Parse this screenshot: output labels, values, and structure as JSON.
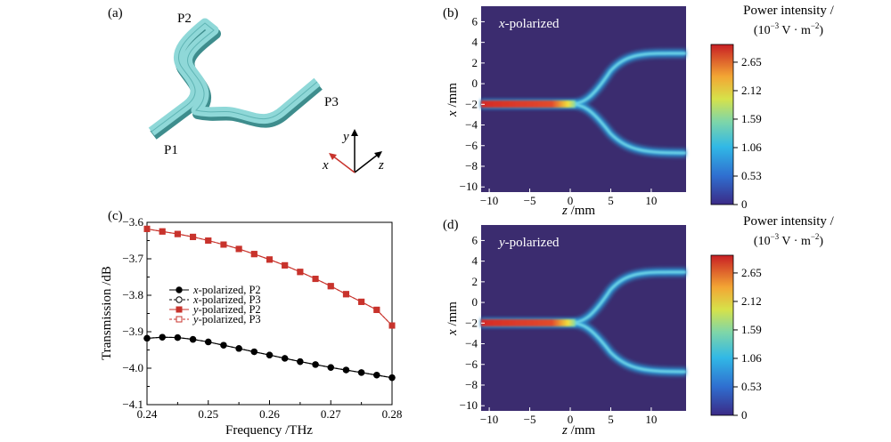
{
  "panels": {
    "a": {
      "tag": "(a)",
      "ports": [
        "P1",
        "P2",
        "P3"
      ],
      "axes": {
        "y": "y",
        "x": "x",
        "z": "z"
      }
    },
    "b": {
      "tag": "(b)",
      "inset": "-polarized",
      "inset_var": "x",
      "xlabel": " /mm",
      "xlabel_var": "z",
      "ylabel": " /mm",
      "ylabel_var": "x",
      "colorbar": {
        "title1": "Power intensity /",
        "title2": "(10",
        "title2_exp": "−3",
        "title2_rest": " V · m",
        "title2_exp2": "−2",
        "title2_end": ")",
        "ticks": [
          "2.65",
          "2.12",
          "1.59",
          "1.06",
          "0.53",
          "0"
        ]
      }
    },
    "d": {
      "tag": "(d)",
      "inset": "-polarized",
      "inset_var": "y",
      "xlabel": " /mm",
      "xlabel_var": "z",
      "ylabel": " /mm",
      "ylabel_var": "x",
      "colorbar": {
        "title1": "Power intensity /",
        "title2": "(10",
        "title2_exp": "−3",
        "title2_rest": " V · m",
        "title2_exp2": "−2",
        "title2_end": ")",
        "ticks": [
          "2.65",
          "2.12",
          "1.59",
          "1.06",
          "0.53",
          "0"
        ]
      }
    },
    "c": {
      "tag": "(c)"
    }
  },
  "field_maps": {
    "x_ticks": [
      "−10",
      "−5",
      "0",
      "5",
      "10"
    ],
    "y_ticks": [
      "6",
      "4",
      "2",
      "0",
      "−2",
      "−4",
      "−6",
      "−8",
      "−10"
    ]
  },
  "chart_data": {
    "type": "line",
    "xlabel": "Frequency /THz",
    "ylabel": "Transmission /dB",
    "xlim": [
      0.24,
      0.28
    ],
    "ylim": [
      -4.1,
      -3.6
    ],
    "x_ticks": [
      "0.24",
      "0.25",
      "0.26",
      "0.27",
      "0.28"
    ],
    "y_ticks": [
      "−3.6",
      "−3.7",
      "−3.8",
      "−3.9",
      "−4.0",
      "−4.1"
    ],
    "x": [
      0.24,
      0.2425,
      0.245,
      0.2475,
      0.25,
      0.2525,
      0.255,
      0.2575,
      0.26,
      0.2625,
      0.265,
      0.2675,
      0.27,
      0.2725,
      0.275,
      0.2775,
      0.28
    ],
    "series": [
      {
        "name": "-polarized, P2",
        "var": "x",
        "color": "#000000",
        "marker": "filled-circle",
        "values": [
          -3.918,
          -3.915,
          -3.916,
          -3.921,
          -3.928,
          -3.937,
          -3.946,
          -3.955,
          -3.964,
          -3.973,
          -3.982,
          -3.99,
          -3.998,
          -4.005,
          -4.012,
          -4.019,
          -4.026
        ]
      },
      {
        "name": "-polarized, P3",
        "var": "x",
        "color": "#000000",
        "marker": "open-circle",
        "values": [
          -3.918,
          -3.915,
          -3.916,
          -3.921,
          -3.928,
          -3.937,
          -3.946,
          -3.955,
          -3.964,
          -3.973,
          -3.982,
          -3.99,
          -3.998,
          -4.005,
          -4.012,
          -4.019,
          -4.026
        ]
      },
      {
        "name": "-polarized, P2",
        "var": "y",
        "color": "#c8332c",
        "marker": "filled-square",
        "values": [
          -3.618,
          -3.625,
          -3.632,
          -3.64,
          -3.65,
          -3.661,
          -3.673,
          -3.687,
          -3.702,
          -3.718,
          -3.736,
          -3.755,
          -3.775,
          -3.797,
          -3.818,
          -3.84,
          -3.883
        ]
      },
      {
        "name": "-polarized, P3",
        "var": "y",
        "color": "#c8332c",
        "marker": "open-square",
        "values": [
          -3.618,
          -3.625,
          -3.632,
          -3.64,
          -3.65,
          -3.661,
          -3.673,
          -3.687,
          -3.702,
          -3.718,
          -3.736,
          -3.755,
          -3.775,
          -3.797,
          -3.818,
          -3.84,
          -3.883
        ]
      }
    ],
    "legend_position": "center-left"
  }
}
